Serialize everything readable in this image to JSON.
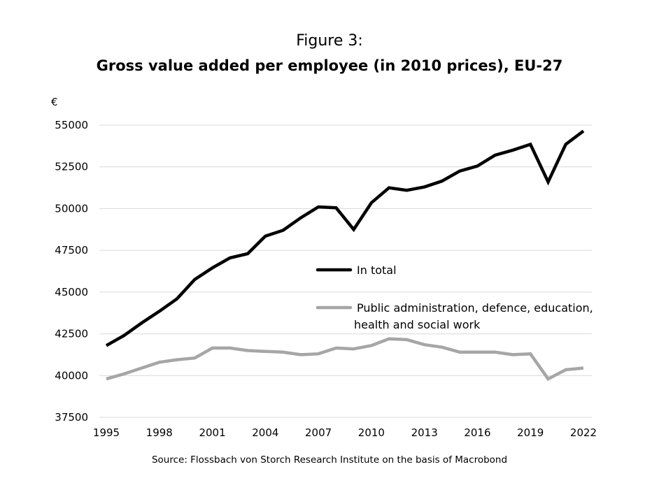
{
  "figure_label": "Figure 3:",
  "title": "Gross value added per employee (in 2010 prices), EU-27",
  "unit": "€",
  "source": "Source: Flossbach von Storch Research Institute on the basis of Macrobond",
  "colors": {
    "total": "#000000",
    "public": "#a6a6a6",
    "grid": "#d9d9d9"
  },
  "chart_data": {
    "type": "line",
    "title": "Gross value added per employee (in 2010 prices), EU-27",
    "ylabel": "€",
    "xlabel": "",
    "ylim": [
      37500,
      55000
    ],
    "yticks": [
      37500,
      40000,
      42500,
      45000,
      47500,
      50000,
      52500,
      55000
    ],
    "xlim": [
      1995,
      2022
    ],
    "xticks": [
      1995,
      1998,
      2001,
      2004,
      2007,
      2010,
      2013,
      2016,
      2019,
      2022
    ],
    "grid": true,
    "legend_position": "center-right",
    "x": [
      1995,
      1996,
      1997,
      1998,
      1999,
      2000,
      2001,
      2002,
      2003,
      2004,
      2005,
      2006,
      2007,
      2008,
      2009,
      2010,
      2011,
      2012,
      2013,
      2014,
      2015,
      2016,
      2017,
      2018,
      2019,
      2020,
      2021,
      2022
    ],
    "series": [
      {
        "name": "In total",
        "color": "#000000",
        "values": [
          41800,
          42400,
          43150,
          43850,
          44600,
          45750,
          46450,
          47050,
          47300,
          48350,
          48700,
          49450,
          50100,
          50050,
          48750,
          50350,
          51250,
          51100,
          51300,
          51650,
          52250,
          52550,
          53200,
          53500,
          53850,
          51600,
          53850,
          54650
        ]
      },
      {
        "name": "Public administration, defence, education, health and social work",
        "name_lines": [
          "Public administration, defence, education,",
          "health and social work"
        ],
        "color": "#a6a6a6",
        "values": [
          39800,
          40100,
          40450,
          40800,
          40950,
          41050,
          41650,
          41650,
          41500,
          41450,
          41400,
          41250,
          41300,
          41650,
          41600,
          41800,
          42200,
          42150,
          41850,
          41700,
          41400,
          41400,
          41400,
          41250,
          41300,
          39800,
          40350,
          40450
        ]
      }
    ]
  }
}
